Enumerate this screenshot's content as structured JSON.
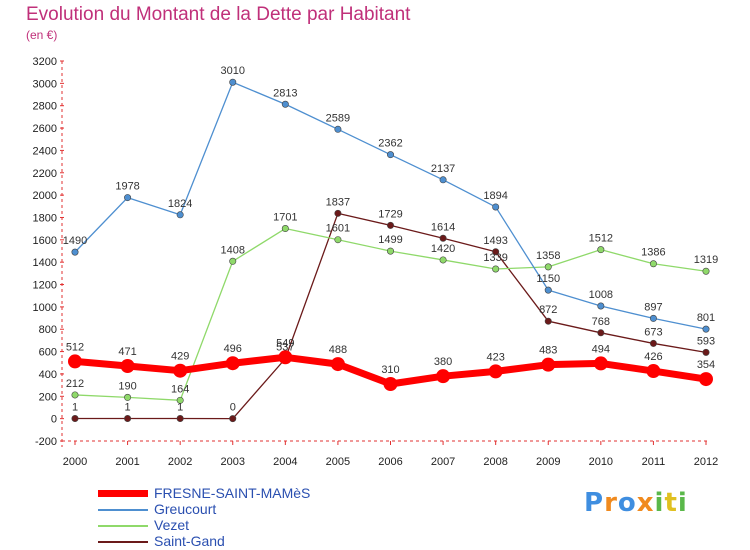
{
  "chart_data": {
    "type": "line",
    "title": "Evolution du Montant de la Dette par Habitant",
    "subtitle": "(en €)",
    "xlabel": "",
    "ylabel": "",
    "x": [
      "2000",
      "2001",
      "2002",
      "2003",
      "2004",
      "2005",
      "2006",
      "2007",
      "2008",
      "2009",
      "2010",
      "2011",
      "2012"
    ],
    "ylim": [
      -200,
      3200
    ],
    "yticks": [
      -200,
      0,
      200,
      400,
      600,
      800,
      1000,
      1200,
      1400,
      1600,
      1800,
      2000,
      2200,
      2400,
      2600,
      2800,
      3000,
      3200
    ],
    "grid": false,
    "legend": "bottom-left",
    "series": [
      {
        "name": "FRESNE-SAINT-MAMèS",
        "color": "#ff0000",
        "values": [
          512,
          471,
          429,
          496,
          549,
          488,
          310,
          380,
          423,
          483,
          494,
          426,
          354
        ],
        "labels": [
          "512",
          "471",
          "429",
          "496",
          "549",
          "488",
          "310",
          "380",
          "423",
          "483",
          "494",
          "426",
          "354"
        ]
      },
      {
        "name": "Greucourt",
        "color": "#4e8fd0",
        "values": [
          1490,
          1978,
          1824,
          3010,
          2813,
          2589,
          2362,
          2137,
          1894,
          1150,
          1008,
          897,
          801
        ],
        "labels": [
          "1490",
          "1978",
          "1824",
          "3010",
          "2813",
          "2589",
          "2362",
          "2137",
          "1894",
          "1150",
          "1008",
          "897",
          "801"
        ]
      },
      {
        "name": "Vezet",
        "color": "#8fd96a",
        "values": [
          212,
          190,
          164,
          1408,
          1701,
          1601,
          1499,
          1420,
          1339,
          1358,
          1512,
          1386,
          1319
        ],
        "labels": [
          "212",
          "190",
          "164",
          "1408",
          "1701",
          "1601",
          "1499",
          "1420",
          "1339",
          "1358",
          "1512",
          "1386",
          "1319"
        ]
      },
      {
        "name": "Saint-Gand",
        "color": "#6b1a1a",
        "values": [
          1,
          1,
          1,
          0,
          537,
          1837,
          1729,
          1614,
          1493,
          872,
          768,
          673,
          593
        ],
        "labels": [
          "1",
          "1",
          "1",
          "0",
          "537",
          "1837",
          "1729",
          "1614",
          "1493",
          "872",
          "768",
          "673",
          "593"
        ]
      }
    ]
  },
  "logo": {
    "letters": [
      "P",
      "r",
      "o",
      "x",
      "i",
      "t",
      "i"
    ],
    "colors": [
      "#3f8ee0",
      "#f08a1e",
      "#3f8ee0",
      "#f08a1e",
      "#5ab84a",
      "#e0c020",
      "#5ab84a"
    ]
  }
}
